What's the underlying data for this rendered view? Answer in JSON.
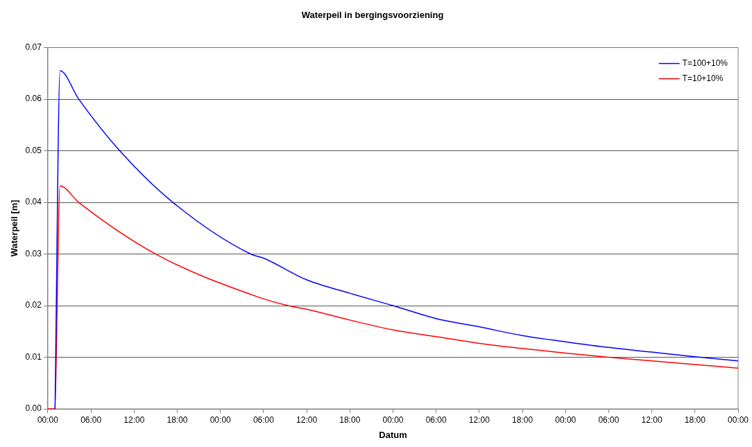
{
  "chart_data": {
    "type": "line",
    "title": "Waterpeil in bergingsvoorziening",
    "xlabel": "Datum",
    "ylabel": "Waterpeil [m]",
    "xlim": [
      "2000-01-01T00:00",
      "2000-01-05T00:00"
    ],
    "xticks": [
      {
        "value": "2000-01-01T00:00",
        "label": "00:00"
      },
      {
        "value": "2000-01-01T06:00",
        "label": "06:00"
      },
      {
        "value": "2000-01-01T12:00",
        "label": "12:00"
      },
      {
        "value": "2000-01-01T18:00",
        "label": "18:00"
      },
      {
        "value": "2000-01-02T00:00",
        "label": "00:00"
      },
      {
        "value": "2000-01-02T06:00",
        "label": "06:00"
      },
      {
        "value": "2000-01-02T12:00",
        "label": "12:00"
      },
      {
        "value": "2000-01-02T18:00",
        "label": "18:00"
      },
      {
        "value": "2000-01-03T00:00",
        "label": "00:00"
      },
      {
        "value": "2000-01-03T06:00",
        "label": "06:00"
      },
      {
        "value": "2000-01-03T12:00",
        "label": "12:00"
      },
      {
        "value": "2000-01-03T18:00",
        "label": "18:00"
      },
      {
        "value": "2000-01-04T00:00",
        "label": "00:00"
      },
      {
        "value": "2000-01-04T06:00",
        "label": "06:00"
      },
      {
        "value": "2000-01-04T12:00",
        "label": "12:00"
      },
      {
        "value": "2000-01-04T18:00",
        "label": "18:00"
      },
      {
        "value": "2000-01-05T00:00",
        "label": "00:00"
      }
    ],
    "ylim": [
      0,
      0.07
    ],
    "yticks": [
      {
        "value": 0,
        "label": "0.00"
      },
      {
        "value": 0.01,
        "label": "0.01"
      },
      {
        "value": 0.02,
        "label": "0.02"
      },
      {
        "value": 0.03,
        "label": "0.03"
      },
      {
        "value": 0.04,
        "label": "0.04"
      },
      {
        "value": 0.05,
        "label": "0.05"
      },
      {
        "value": 0.06,
        "label": "0.06"
      },
      {
        "value": 0.07,
        "label": "0.07"
      }
    ],
    "grid": "y",
    "legend": "top right",
    "marker": "none",
    "line_style": "solid",
    "series": [
      {
        "name": "T=100+10%",
        "color": "#0000ff",
        "x": [
          "2000-01-01T01:00",
          "2000-01-01T01:42",
          "2000-01-01T04:18",
          "2000-01-01T10:00",
          "2000-01-01T17:24",
          "2000-01-02T04:12",
          "2000-01-02T06:00",
          "2000-01-02T12:00",
          "2000-01-02T18:00",
          "2000-01-03T00:00",
          "2000-01-03T06:00",
          "2000-01-03T12:00",
          "2000-01-03T18:00",
          "2000-01-04T00:00",
          "2000-01-04T06:00",
          "2000-01-04T12:00",
          "2000-01-04T18:00",
          "2000-01-05T00:00"
        ],
        "values": [
          0,
          0.0655,
          0.06,
          0.05,
          0.04,
          0.03,
          0.0292,
          0.025,
          0.0224,
          0.02,
          0.0175,
          0.0159,
          0.0142,
          0.013,
          0.0119,
          0.011,
          0.0101,
          0.0093
        ]
      },
      {
        "name": "T=10+10%",
        "color": "#ff0000",
        "x": [
          "2000-01-01T00:00",
          "2000-01-01T00:56",
          "2000-01-01T01:42",
          "2000-01-01T04:18",
          "2000-01-01T15:00",
          "2000-01-02T05:12",
          "2000-01-02T09:24",
          "2000-01-02T12:00",
          "2000-01-02T18:00",
          "2000-01-03T00:00",
          "2000-01-03T06:00",
          "2000-01-03T12:00",
          "2000-01-03T18:00",
          "2000-01-04T00:00",
          "2000-01-04T06:00",
          "2000-01-04T12:00",
          "2000-01-04T18:00",
          "2000-01-05T00:00"
        ],
        "values": [
          0,
          0,
          0.0432,
          0.04,
          0.03,
          0.0217,
          0.02,
          0.0193,
          0.0172,
          0.0153,
          0.014,
          0.0127,
          0.0117,
          0.0108,
          0.01,
          0.0093,
          0.0086,
          0.0079
        ]
      }
    ]
  }
}
